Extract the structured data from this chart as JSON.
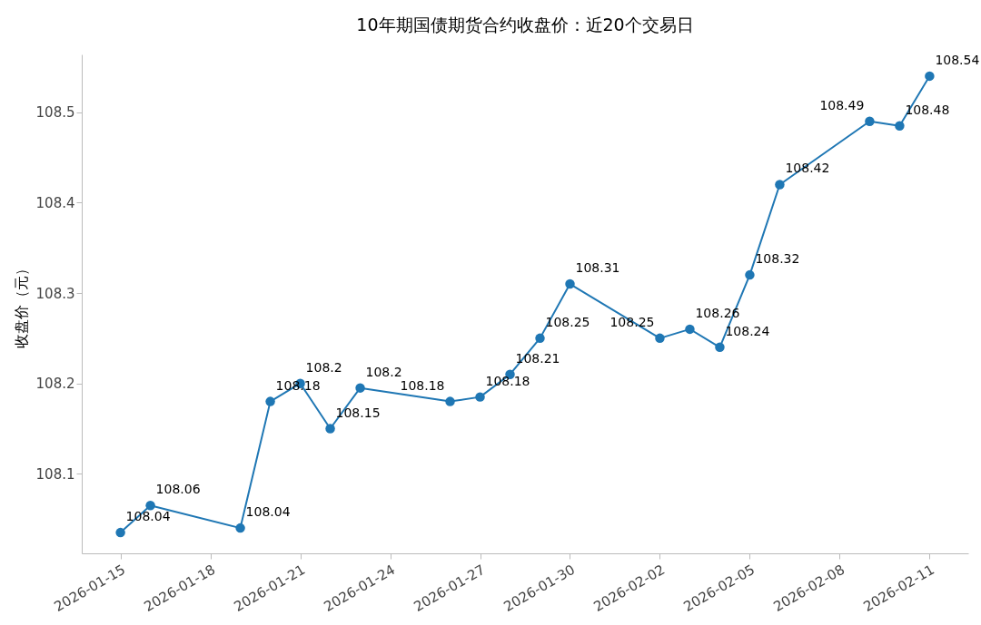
{
  "chart_data": {
    "type": "line",
    "title": "10年期国债期货合约收盘价：近20个交易日",
    "ylabel": "收盘价（元）",
    "x": [
      "2026-01-15",
      "2026-01-16",
      "2026-01-19",
      "2026-01-20",
      "2026-01-21",
      "2026-01-22",
      "2026-01-23",
      "2026-01-26",
      "2026-01-27",
      "2026-01-28",
      "2026-01-29",
      "2026-01-30",
      "2026-02-02",
      "2026-02-03",
      "2026-02-04",
      "2026-02-05",
      "2026-02-06",
      "2026-02-09",
      "2026-02-10",
      "2026-02-11"
    ],
    "series": [
      {
        "color": "#1f77b4",
        "values": [
          108.035,
          108.065,
          108.04,
          108.18,
          108.2,
          108.15,
          108.195,
          108.18,
          108.185,
          108.21,
          108.25,
          108.31,
          108.25,
          108.26,
          108.24,
          108.32,
          108.42,
          108.49,
          108.485,
          108.54
        ],
        "value_labels": [
          "108.04",
          "108.06",
          "108.04",
          "108.18",
          "108.2",
          "108.15",
          "108.2",
          "108.18",
          "108.18",
          "108.21",
          "108.25",
          "108.31",
          "108.25",
          "108.26",
          "108.24",
          "108.32",
          "108.42",
          "108.49",
          "108.48",
          "108.54"
        ]
      }
    ],
    "xlim": [
      "2026-01-13T17:00",
      "2026-02-12T07:00"
    ],
    "xticks": [
      "2026-01-15",
      "2026-01-18",
      "2026-01-21",
      "2026-01-24",
      "2026-01-27",
      "2026-01-30",
      "2026-02-02",
      "2026-02-05",
      "2026-02-08",
      "2026-02-11"
    ],
    "ylim": [
      108.012,
      108.564
    ],
    "yticks": [
      108.1,
      108.2,
      108.3,
      108.4,
      108.5
    ],
    "grid": false,
    "marker": "circle",
    "line_style": "solid"
  }
}
